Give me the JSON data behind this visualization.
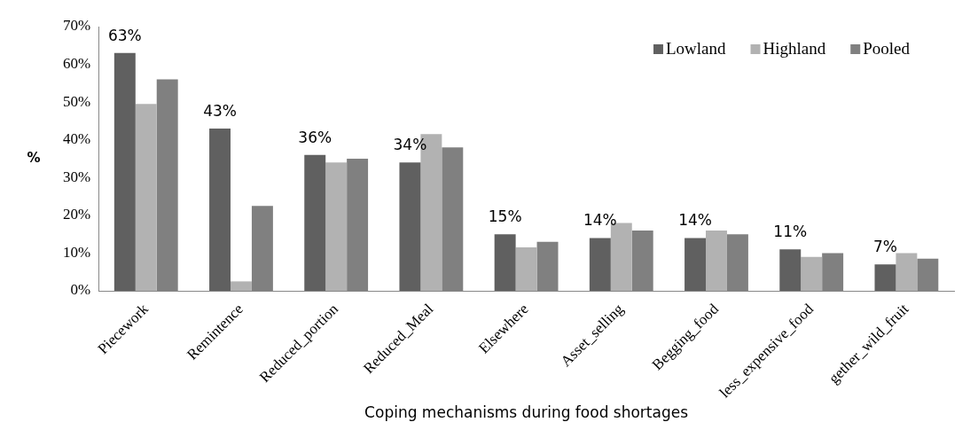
{
  "chart_data": {
    "type": "bar",
    "xlabel": "Coping mechanisms during food shortages",
    "ylabel": "%",
    "categories": [
      "Piecework",
      "Remintence",
      "Reduced_portion",
      "Reduced_Meal",
      "Elsewhere",
      "Asset_selling",
      "Begging_food",
      "less_expensive_food",
      "gether_wild_fruit"
    ],
    "series": [
      {
        "name": "Lowland",
        "color": "#606060",
        "values": [
          63,
          43,
          36,
          34,
          15,
          14,
          14,
          11,
          7
        ],
        "value_labels": [
          "63%",
          "43%",
          "36%",
          "34%",
          "15%",
          "14%",
          "14%",
          "11%",
          "7%"
        ]
      },
      {
        "name": "Highland",
        "color": "#b2b2b2",
        "values": [
          49.5,
          2.5,
          34,
          41.5,
          11.5,
          18,
          16,
          9,
          10
        ]
      },
      {
        "name": "Pooled",
        "color": "#808080",
        "values": [
          56,
          22.5,
          35,
          38,
          13,
          16,
          15,
          10,
          8.5
        ]
      }
    ],
    "ylim": [
      0,
      70
    ],
    "yticks": [
      {
        "value": 0,
        "label": "0%"
      },
      {
        "value": 10,
        "label": "10%"
      },
      {
        "value": 20,
        "label": "20%"
      },
      {
        "value": 30,
        "label": "30%"
      },
      {
        "value": 40,
        "label": "40%"
      },
      {
        "value": 50,
        "label": "50%"
      },
      {
        "value": 60,
        "label": "60%"
      },
      {
        "value": 70,
        "label": "70%"
      }
    ],
    "grid": false,
    "legend": "top right"
  }
}
